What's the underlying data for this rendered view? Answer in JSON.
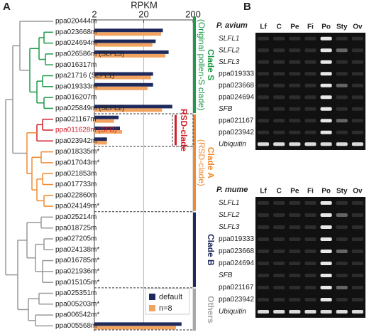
{
  "panel_labels": [
    "A",
    "B"
  ],
  "chart_data": {
    "type": "bar",
    "orientation": "horizontal",
    "title": "RPKM",
    "categories": [
      "ppa020444m",
      "ppa023668m*",
      "ppa024694m*",
      "ppa026586m (SLFL3)",
      "ppa016317m",
      "ppa21716 (SLFL1)",
      "ppa019333m",
      "ppa016207m",
      "ppa025849m (SLFL2)",
      "ppa021167m",
      "ppa011628m (SFB)",
      "ppa023942m",
      "ppa018335m*",
      "ppa017043m*",
      "ppa021853m",
      "ppa017733m",
      "ppa022860m",
      "ppa024149m*",
      "ppa025214m",
      "ppa018725m",
      "ppa027205m",
      "ppa024138m*",
      "ppa016785m*",
      "ppa021936m*",
      "ppa015105m*",
      "ppa025351m",
      "ppa005203m*",
      "ppa006542m*",
      "ppa005568m*"
    ],
    "series": [
      {
        "name": "default",
        "color": "#1f2a5c",
        "values": [
          null,
          49,
          35,
          64,
          null,
          31,
          31,
          null,
          76,
          6.2,
          6.6,
          3.6,
          null,
          null,
          null,
          null,
          null,
          null,
          null,
          null,
          null,
          null,
          null,
          null,
          null,
          null,
          null,
          null,
          117
        ]
      },
      {
        "name": "n=8",
        "color": "#f2a360",
        "values": [
          null,
          45,
          30,
          55,
          null,
          28,
          24,
          null,
          47,
          5,
          7.3,
          3.6,
          null,
          null,
          null,
          null,
          null,
          null,
          null,
          null,
          null,
          null,
          null,
          null,
          null,
          null,
          null,
          null,
          90
        ]
      }
    ],
    "xlim": [
      2,
      200
    ],
    "xticks": [
      2,
      20,
      200
    ],
    "log_scale": true,
    "grid": true,
    "legend": "lower right"
  },
  "clades": [
    {
      "label": [
        "Clade S",
        "(Original pollen-S clade)"
      ],
      "color": "#1e9a4a"
    },
    {
      "label": [
        "Clade A",
        "(RSD-clade)"
      ],
      "color": "#f08a30"
    },
    {
      "label": [
        "Clade B"
      ],
      "color": "#1f2a5c"
    },
    {
      "label": [
        "Others"
      ],
      "color": "#a8a8a8"
    }
  ],
  "subclade": {
    "label": "RSD-clade",
    "color": "#d0202a"
  },
  "gels": [
    {
      "species": "P. avium",
      "lanes": [
        "Lf",
        "C",
        "Pe",
        "Fi",
        "Po",
        "Sty",
        "Ov"
      ],
      "genes": [
        "SLFL1",
        "SLFL2",
        "SLFL3",
        "ppa019333",
        "ppa023668",
        "ppa024694",
        "SFB",
        "ppa021167",
        "ppa023942",
        "Ubiquitin"
      ]
    },
    {
      "species": "P. mume",
      "lanes": [
        "Lf",
        "C",
        "Pe",
        "Fi",
        "Po",
        "Sty",
        "Ov"
      ],
      "genes": [
        "SLFL1",
        "SLFL2",
        "SLFL3",
        "ppa019333",
        "ppa023668",
        "ppa024694",
        "SFB",
        "ppa021167",
        "ppa023942",
        "Ubiquitin"
      ]
    }
  ]
}
